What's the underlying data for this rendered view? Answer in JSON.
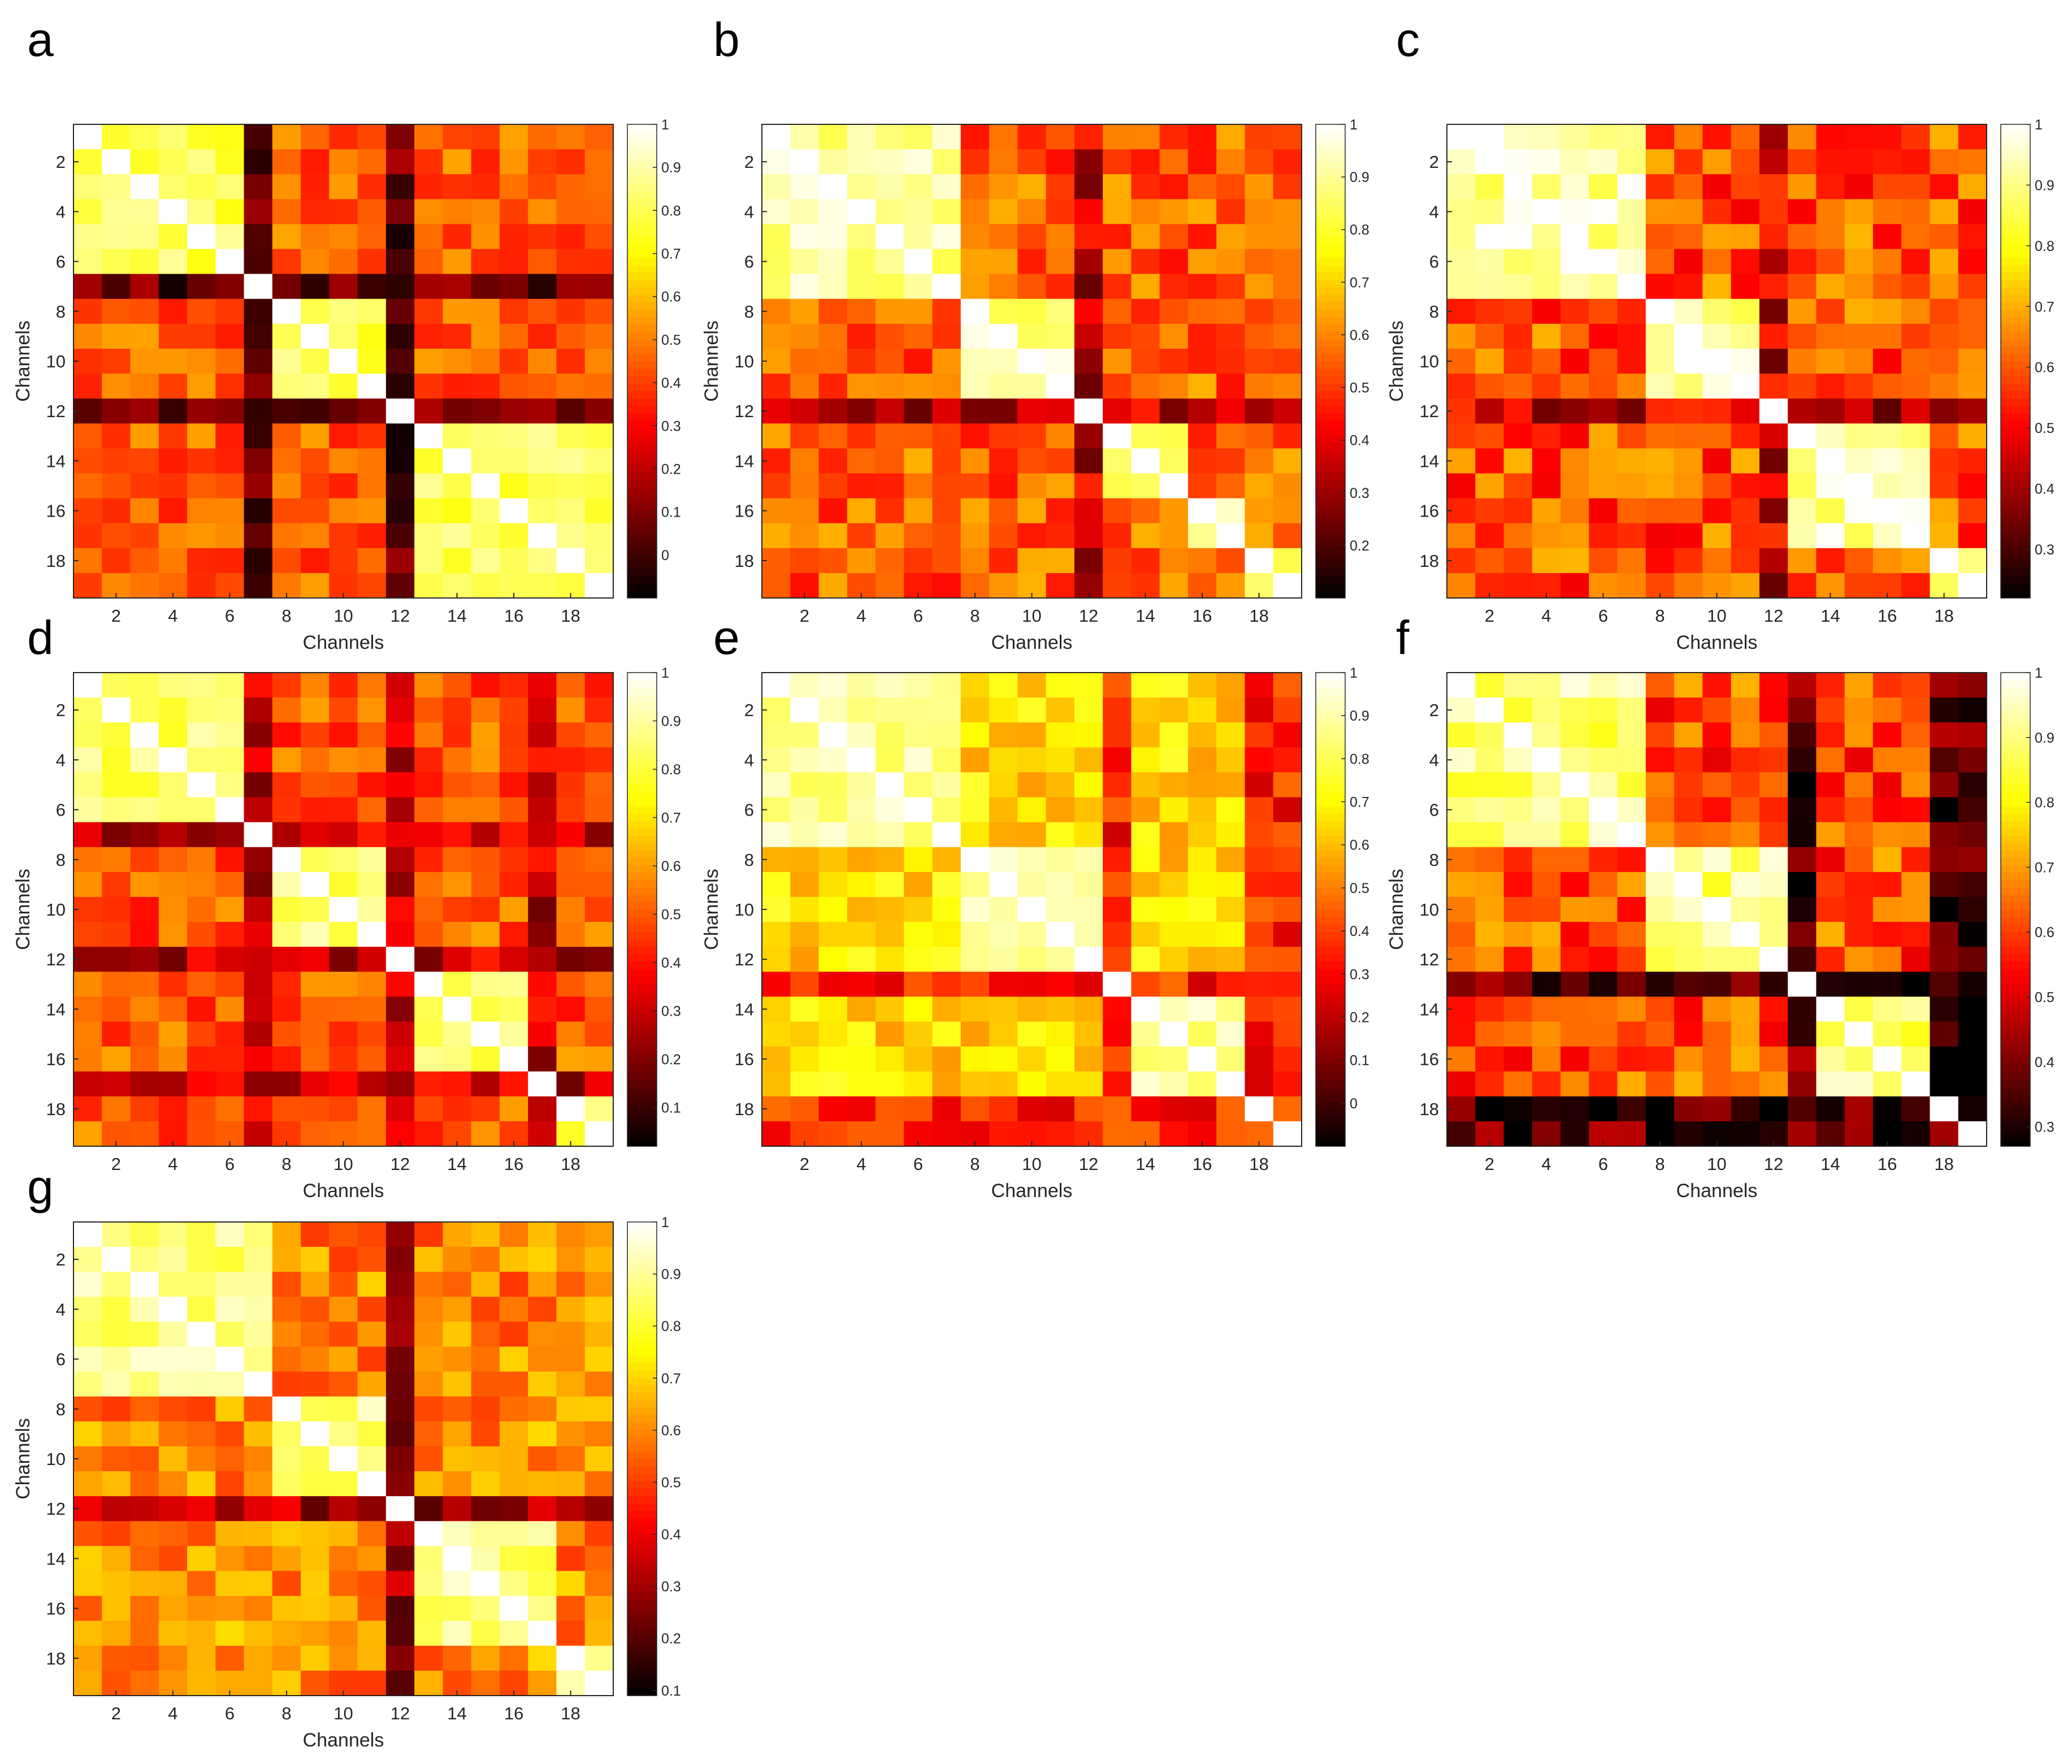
{
  "figure": {
    "colormap": "hot",
    "n_channels": 19
  },
  "chart_data": [
    {
      "panel": "a",
      "type": "heatmap",
      "xlabel": "Channels",
      "ylabel": "Channels",
      "xticks": [
        2,
        4,
        6,
        8,
        10,
        12,
        14,
        16,
        18
      ],
      "yticks": [
        2,
        4,
        6,
        8,
        10,
        12,
        14,
        16,
        18
      ],
      "colorbar": {
        "min": -0.1,
        "max": 1,
        "ticks": [
          "0",
          "0.1",
          "0.2",
          "0.3",
          "0.4",
          "0.5",
          "0.6",
          "0.7",
          "0.8",
          "0.9",
          "1"
        ],
        "tick_values": [
          0,
          0.1,
          0.2,
          0.3,
          0.4,
          0.5,
          0.6,
          0.7,
          0.8,
          0.9,
          1
        ]
      },
      "groups": [
        [
          1,
          6
        ],
        [
          8,
          11
        ],
        [
          13,
          19
        ]
      ],
      "isolated": [
        7,
        12
      ],
      "levels": {
        "within": 0.8,
        "between": 0.45,
        "isolated": 0.05
      }
    },
    {
      "panel": "b",
      "type": "heatmap",
      "xlabel": "Channels",
      "ylabel": "Channels",
      "xticks": [
        2,
        4,
        6,
        8,
        10,
        12,
        14,
        16,
        18
      ],
      "yticks": [
        2,
        4,
        6,
        8,
        10,
        12,
        14,
        16,
        18
      ],
      "colorbar": {
        "min": 0.1,
        "max": 1,
        "ticks": [
          "0.2",
          "0.3",
          "0.4",
          "0.5",
          "0.6",
          "0.7",
          "0.8",
          "0.9",
          "1"
        ],
        "tick_values": [
          0.2,
          0.3,
          0.4,
          0.5,
          0.6,
          0.7,
          0.8,
          0.9,
          1
        ]
      },
      "groups": [
        [
          1,
          7
        ],
        [
          8,
          11
        ],
        [
          13,
          15
        ],
        [
          16,
          17
        ],
        [
          18,
          19
        ]
      ],
      "isolated": [
        12
      ],
      "levels": {
        "within": 0.9,
        "between": 0.55,
        "isolated": 0.35
      }
    },
    {
      "panel": "c",
      "type": "heatmap",
      "xlabel": "Channels",
      "ylabel": "Channels",
      "xticks": [
        2,
        4,
        6,
        8,
        10,
        12,
        14,
        16,
        18
      ],
      "yticks": [
        2,
        4,
        6,
        8,
        10,
        12,
        14,
        16,
        18
      ],
      "colorbar": {
        "min": 0.22,
        "max": 1,
        "ticks": [
          "0.3",
          "0.4",
          "0.5",
          "0.6",
          "0.7",
          "0.8",
          "0.9",
          "1"
        ],
        "tick_values": [
          0.3,
          0.4,
          0.5,
          0.6,
          0.7,
          0.8,
          0.9,
          1
        ]
      },
      "groups": [
        [
          1,
          7
        ],
        [
          8,
          11
        ],
        [
          13,
          17
        ],
        [
          18,
          19
        ]
      ],
      "isolated": [
        12
      ],
      "levels": {
        "within": 0.92,
        "between": 0.6,
        "isolated": 0.45
      }
    },
    {
      "panel": "d",
      "type": "heatmap",
      "xlabel": "Channels",
      "ylabel": "Channels",
      "xticks": [
        2,
        4,
        6,
        8,
        10,
        12,
        14,
        16,
        18
      ],
      "yticks": [
        2,
        4,
        6,
        8,
        10,
        12,
        14,
        16,
        18
      ],
      "colorbar": {
        "min": 0.02,
        "max": 1,
        "ticks": [
          "0.1",
          "0.2",
          "0.3",
          "0.4",
          "0.5",
          "0.6",
          "0.7",
          "0.8",
          "0.9",
          "1"
        ],
        "tick_values": [
          0.1,
          0.2,
          0.3,
          0.4,
          0.5,
          0.6,
          0.7,
          0.8,
          0.9,
          1
        ]
      },
      "groups": [
        [
          1,
          6
        ],
        [
          8,
          11
        ],
        [
          13,
          16
        ],
        [
          18,
          19
        ]
      ],
      "isolated": [
        7,
        12,
        17
      ],
      "levels": {
        "within": 0.85,
        "between": 0.5,
        "isolated": 0.3
      }
    },
    {
      "panel": "e",
      "type": "heatmap",
      "xlabel": "Channels",
      "ylabel": "Channels",
      "xticks": [
        2,
        4,
        6,
        8,
        10,
        12,
        14,
        16,
        18
      ],
      "yticks": [
        2,
        4,
        6,
        8,
        10,
        12,
        14,
        16,
        18
      ],
      "colorbar": {
        "min": -0.1,
        "max": 1,
        "ticks": [
          "0",
          "0.1",
          "0.2",
          "0.3",
          "0.4",
          "0.5",
          "0.6",
          "0.7",
          "0.8",
          "0.9",
          "1"
        ],
        "tick_values": [
          0,
          0.1,
          0.2,
          0.3,
          0.4,
          0.5,
          0.6,
          0.7,
          0.8,
          0.9,
          1
        ]
      },
      "groups": [
        [
          1,
          7
        ],
        [
          8,
          12
        ],
        [
          14,
          17
        ]
      ],
      "isolated": [
        13,
        18,
        19
      ],
      "levels": {
        "within": 0.88,
        "between": 0.65,
        "isolated": 0.35
      }
    },
    {
      "panel": "f",
      "type": "heatmap",
      "xlabel": "Channels",
      "ylabel": "Channels",
      "xticks": [
        2,
        4,
        6,
        8,
        10,
        12,
        14,
        16,
        18
      ],
      "yticks": [
        2,
        4,
        6,
        8,
        10,
        12,
        14,
        16,
        18
      ],
      "colorbar": {
        "min": 0.27,
        "max": 1,
        "ticks": [
          "0.3",
          "0.4",
          "0.5",
          "0.6",
          "0.7",
          "0.8",
          "0.9",
          "1"
        ],
        "tick_values": [
          0.3,
          0.4,
          0.5,
          0.6,
          0.7,
          0.8,
          0.9,
          1
        ]
      },
      "groups": [
        [
          1,
          7
        ],
        [
          8,
          12
        ],
        [
          14,
          17
        ]
      ],
      "isolated": [
        13,
        18,
        19
      ],
      "levels": {
        "within": 0.9,
        "between": 0.62,
        "isolated": 0.35
      }
    },
    {
      "panel": "g",
      "type": "heatmap",
      "xlabel": "Channels",
      "ylabel": "Channels",
      "xticks": [
        2,
        4,
        6,
        8,
        10,
        12,
        14,
        16,
        18
      ],
      "yticks": [
        2,
        4,
        6,
        8,
        10,
        12,
        14,
        16,
        18
      ],
      "colorbar": {
        "min": 0.09,
        "max": 1,
        "ticks": [
          "0.1",
          "0.2",
          "0.3",
          "0.4",
          "0.5",
          "0.6",
          "0.7",
          "0.8",
          "0.9",
          "1"
        ],
        "tick_values": [
          0.1,
          0.2,
          0.3,
          0.4,
          0.5,
          0.6,
          0.7,
          0.8,
          0.9,
          1
        ]
      },
      "groups": [
        [
          1,
          7
        ],
        [
          8,
          11
        ],
        [
          13,
          17
        ],
        [
          18,
          19
        ]
      ],
      "isolated": [
        12
      ],
      "levels": {
        "within": 0.88,
        "between": 0.6,
        "isolated": 0.3
      }
    }
  ]
}
